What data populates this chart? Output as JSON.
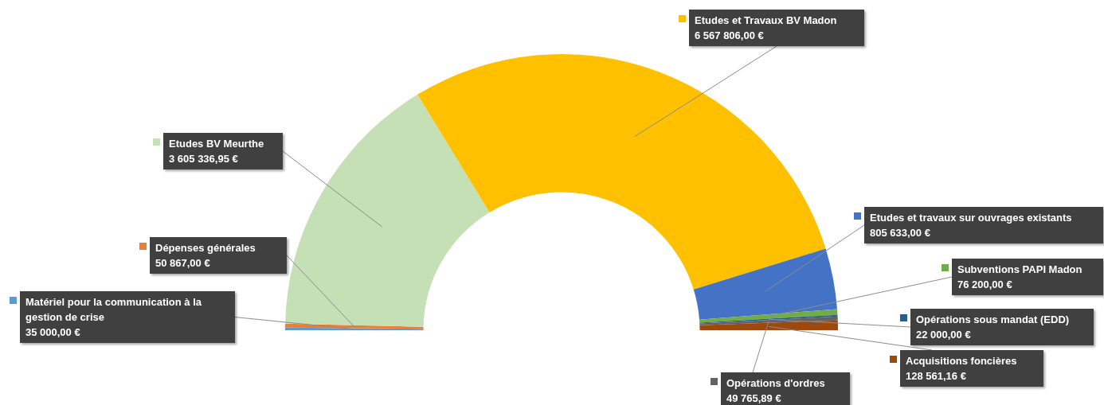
{
  "chart_data": {
    "type": "donut",
    "categories": [
      "Matériel pour la communication à la gestion de crise",
      "Dépenses générales",
      "Etudes BV Meurthe",
      "Etudes et Travaux BV Madon",
      "Etudes et travaux sur ouvrages existants",
      "Subventions PAPI Madon",
      "Opérations sous mandat (EDD)",
      "Opérations d'ordres",
      "Acquisitions foncières"
    ],
    "values": [
      35000,
      50867,
      3605336.95,
      6567806,
      805633,
      76200,
      22000,
      49765.89,
      128561.16
    ],
    "colors": [
      "#5b9bd5",
      "#ed7d31",
      "#c5e0b4",
      "#ffc000",
      "#4472c4",
      "#70ad47",
      "#255e91",
      "#636363",
      "#9e480e"
    ],
    "value_labels": [
      "35 000,00 €",
      "50 867,00 €",
      "3 605 336,95 €",
      "6 567 806,00 €",
      "805 633,00 €",
      "76 200,00 €",
      "22 000,00 €",
      "49 765,89 €",
      "128 561,16 €"
    ],
    "legend": "right"
  }
}
